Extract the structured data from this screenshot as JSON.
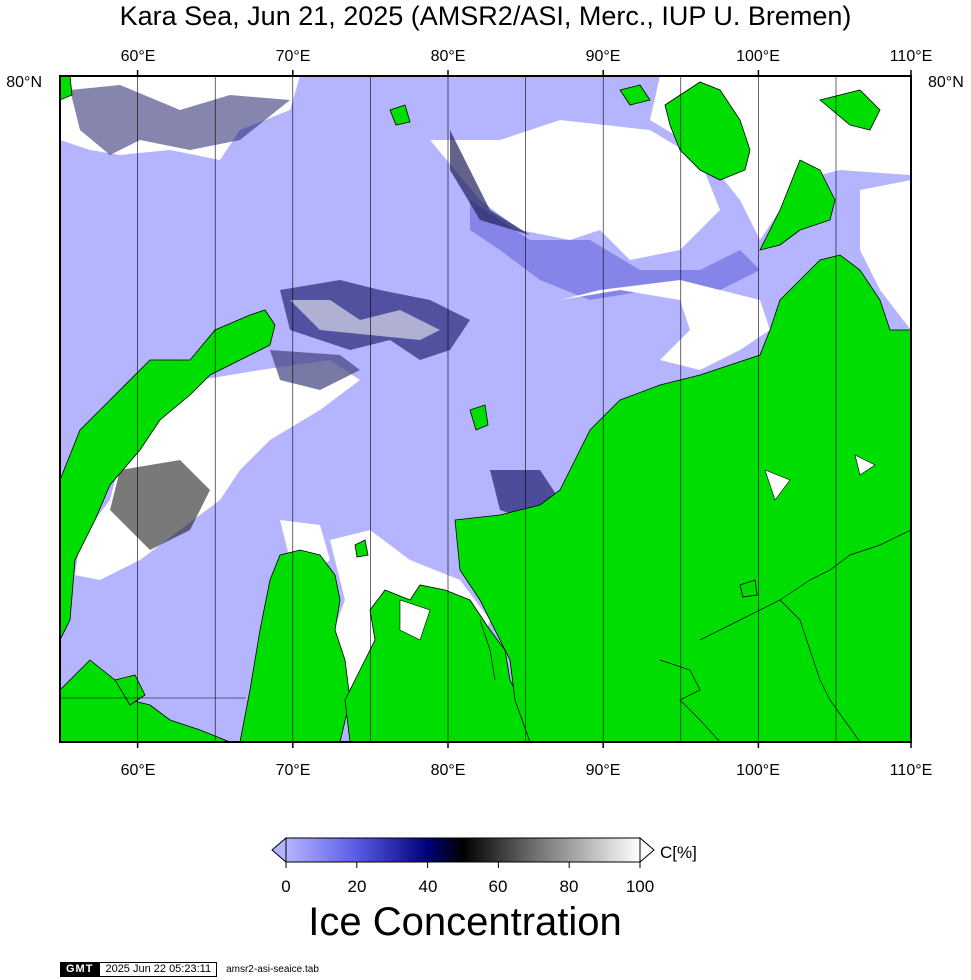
{
  "title": "Kara Sea, Jun 21, 2025 (AMSR2/ASI, Merc., IUP U. Bremen)",
  "map": {
    "lon_ticks_top": [
      "60°E",
      "70°E",
      "80°E",
      "90°E",
      "100°E",
      "110°E"
    ],
    "lon_ticks_bottom": [
      "60°E",
      "70°E",
      "80°E",
      "90°E",
      "100°E",
      "110°E"
    ],
    "lat_label_left": "80°N",
    "lat_label_right": "80°N",
    "colors": {
      "land": "#00dd00",
      "open_water": "#b4b4ff",
      "frame": "#000000"
    }
  },
  "colorbar": {
    "unit_label": "C[%]",
    "ticks": [
      "0",
      "20",
      "40",
      "60",
      "80",
      "100"
    ],
    "title": "Ice Concentration",
    "stops": [
      "#b4b4ff",
      "#5a5ae6",
      "#00007a",
      "#000000",
      "#6e6e6e",
      "#ffffff"
    ]
  },
  "footer": {
    "logo": "GMT",
    "timestamp": "2025 Jun 22 05:23:11",
    "filename": "amsr2-asi-seaice.tab"
  }
}
